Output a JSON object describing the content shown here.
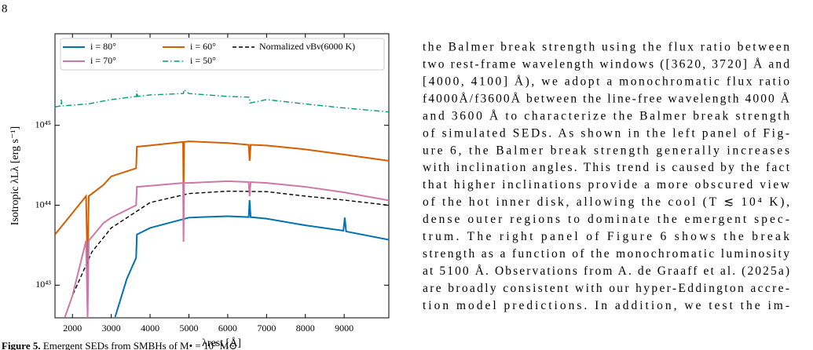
{
  "page_number": "8",
  "chart_data": {
    "type": "line",
    "x_label": "λrest [Å]",
    "y_label": "Isotropic λLλ [erg s⁻¹]",
    "xlim": [
      1550,
      10150
    ],
    "xticks": [
      2000,
      3000,
      4000,
      5000,
      6000,
      7000,
      8000,
      9000
    ],
    "ylim": [
      3.9e+42,
      1.4e+46
    ],
    "yticks": [
      {
        "value": 1e+43,
        "label": "10⁴³"
      },
      {
        "value": 1e+44,
        "label": "10⁴⁴"
      },
      {
        "value": 1e+45,
        "label": "10⁴⁵"
      }
    ],
    "y_scale": "log",
    "legend": "upper left",
    "series": [
      {
        "name": "i = 80°",
        "color": "#0072b2",
        "linestyle": "solid",
        "x": [
          3100,
          3400,
          3640,
          3660,
          4000,
          5000,
          6000,
          6540,
          6563,
          6590,
          7000,
          8000,
          8980,
          9015,
          9050,
          10150
        ],
        "values": [
          4e+42,
          1.2e+43,
          2.2e+43,
          4.3e+43,
          5.2e+43,
          7e+43,
          7.3e+43,
          7.1e+43,
          1.16e+44,
          7.1e+43,
          6.8e+43,
          5.6e+43,
          4.8e+43,
          7e+43,
          4.7e+43,
          3.7e+43
        ]
      },
      {
        "name": "i = 60°",
        "color": "#d55e00",
        "linestyle": "solid",
        "x": [
          1550,
          2000,
          2350,
          2390,
          2420,
          2800,
          3000,
          3640,
          3660,
          4000,
          4850,
          4861,
          4875,
          5000,
          6000,
          6540,
          6563,
          6590,
          7000,
          8000,
          9000,
          10150
        ],
        "values": [
          4.3e+43,
          8e+43,
          1.3e+44,
          1.5e+43,
          1.3e+44,
          1.8e+44,
          2.3e+44,
          2.9e+44,
          5.4e+44,
          5.6e+44,
          6.2e+44,
          1.2e+44,
          6.2e+44,
          6.3e+44,
          6e+44,
          5.7e+44,
          3.6e+44,
          5.7e+44,
          5.6e+44,
          5e+44,
          4.3e+44,
          3.6e+44
        ]
      },
      {
        "name": "Normalized νBν(6000 K)",
        "color": "#000000",
        "linestyle": "dashed",
        "x": [
          1800,
          2000,
          2500,
          3000,
          4000,
          5000,
          6000,
          7000,
          8000,
          9000,
          10150
        ],
        "values": [
          3.9e+42,
          7.4e+42,
          2.6e+43,
          5.2e+43,
          1.08e+44,
          1.4e+44,
          1.5e+44,
          1.48e+44,
          1.3e+44,
          1.16e+44,
          1e+44
        ]
      },
      {
        "name": "i = 70°",
        "color": "#cc79a7",
        "linestyle": "solid",
        "x": [
          1800,
          2000,
          2350,
          2390,
          2420,
          2800,
          3000,
          3640,
          3660,
          4000,
          4850,
          4861,
          4875,
          5000,
          6000,
          6540,
          6563,
          6590,
          7000,
          8000,
          9000,
          10150
        ],
        "values": [
          3.9e+42,
          7.4e+42,
          3.6e+43,
          3.9e+42,
          3.6e+43,
          6e+43,
          7e+43,
          1e+44,
          1.7e+44,
          1.75e+44,
          1.9e+44,
          3.5e+43,
          1.9e+44,
          1.9e+44,
          2e+44,
          1.95e+44,
          1.3e+44,
          1.95e+44,
          1.9e+44,
          1.7e+44,
          1.45e+44,
          1.15e+44
        ]
      },
      {
        "name": "i = 50°",
        "color": "#009e73",
        "linestyle": "dashdot",
        "x": [
          1550,
          1700,
          1710,
          1730,
          2400,
          3000,
          3650,
          3660,
          3680,
          4000,
          4860,
          4870,
          5000,
          6000,
          6560,
          6570,
          7000,
          8000,
          9000,
          10150
        ],
        "values": [
          1.7e+45,
          1.75e+45,
          2.1e+45,
          1.75e+45,
          1.85e+45,
          2.1e+45,
          2.3e+45,
          2.7e+45,
          2.3e+45,
          2.4e+45,
          2.5e+45,
          2.8e+45,
          2.5e+45,
          2.3e+45,
          2.25e+45,
          1.9e+45,
          2.1e+45,
          1.85e+45,
          1.65e+45,
          1.47e+45
        ]
      }
    ]
  },
  "body_text": [
    "the Balmer break strength using the flux ratio between",
    "two rest-frame wavelength windows ([3620, 3720] Å and",
    "[4000, 4100] Å), we adopt a monochromatic flux ratio",
    "f4000Å/f3600Å between the line-free wavelength 4000 Å",
    "and 3600 Å to characterize the Balmer break strength",
    "of simulated SEDs. As shown in the left panel of Fig-",
    "ure 6, the Balmer break strength generally increases",
    "with inclination angles. This trend is caused by the fact",
    "that higher inclinations provide a more obscured view",
    "of the hot inner disk, allowing the cool (T ≲ 10⁴ K),",
    "dense outer regions to dominate the emergent spec-",
    "trum. The right panel of Figure 6 shows the break",
    "strength as a function of the monochromatic luminosity",
    "at 5100 Å. Observations from A. de Graaff et al. (2025a)",
    "are broadly consistent with our hyper-Eddington accre-",
    "tion model predictions. In addition, we test the im-"
  ],
  "caption": {
    "label": "Figure 5.",
    "text": "Emergent SEDs from SMBHs of M• = 10⁷ M⊙"
  }
}
